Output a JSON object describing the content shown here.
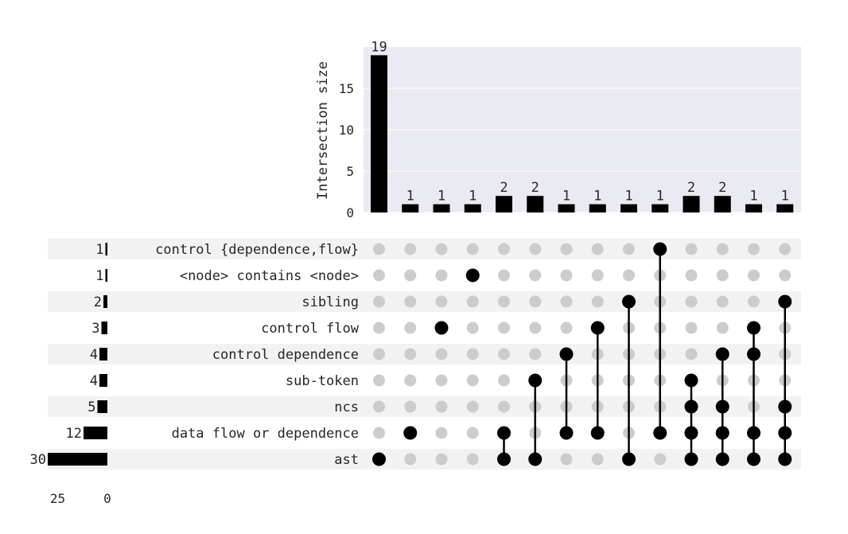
{
  "chart_data": {
    "type": "upset",
    "top_axis": {
      "ylabel": "Intersection size",
      "ylim": [
        0,
        20
      ],
      "ticks": [
        "0",
        "5",
        "10",
        "15"
      ]
    },
    "sets": [
      {
        "name": "control {dependence,flow}",
        "size": 1,
        "size_label": "1"
      },
      {
        "name": "<node> contains <node>",
        "size": 1,
        "size_label": "1"
      },
      {
        "name": "sibling",
        "size": 2,
        "size_label": "2"
      },
      {
        "name": "control flow",
        "size": 3,
        "size_label": "3"
      },
      {
        "name": "control dependence",
        "size": 4,
        "size_label": "4"
      },
      {
        "name": "sub-token",
        "size": 4,
        "size_label": "4"
      },
      {
        "name": "ncs",
        "size": 5,
        "size_label": "5"
      },
      {
        "name": "data flow or dependence",
        "size": 12,
        "size_label": "12"
      },
      {
        "name": "ast",
        "size": 30,
        "size_label": "30"
      }
    ],
    "set_size_axis": {
      "ticks": [
        "25",
        "0"
      ],
      "xlim": [
        0,
        30
      ]
    },
    "intersections": [
      {
        "size": 19,
        "label": "19",
        "members": [
          8
        ]
      },
      {
        "size": 1,
        "label": "1",
        "members": [
          7
        ]
      },
      {
        "size": 1,
        "label": "1",
        "members": [
          3
        ]
      },
      {
        "size": 1,
        "label": "1",
        "members": [
          1
        ]
      },
      {
        "size": 2,
        "label": "2",
        "members": [
          7,
          8
        ]
      },
      {
        "size": 2,
        "label": "2",
        "members": [
          5,
          8
        ]
      },
      {
        "size": 1,
        "label": "1",
        "members": [
          4,
          7
        ]
      },
      {
        "size": 1,
        "label": "1",
        "members": [
          3,
          7
        ]
      },
      {
        "size": 1,
        "label": "1",
        "members": [
          2,
          8
        ]
      },
      {
        "size": 1,
        "label": "1",
        "members": [
          0,
          7
        ]
      },
      {
        "size": 2,
        "label": "2",
        "members": [
          5,
          6,
          7,
          8
        ]
      },
      {
        "size": 2,
        "label": "2",
        "members": [
          4,
          6,
          7,
          8
        ]
      },
      {
        "size": 1,
        "label": "1",
        "members": [
          3,
          4,
          7,
          8
        ]
      },
      {
        "size": 1,
        "label": "1",
        "members": [
          2,
          6,
          7,
          8
        ]
      }
    ],
    "colors": {
      "bar": "#000000",
      "panel_bg": "#eaeaf2",
      "grid": "#ffffff",
      "stripe": "#f2f2f2",
      "dot_active": "#000000",
      "dot_inactive": "#cccccc"
    }
  }
}
